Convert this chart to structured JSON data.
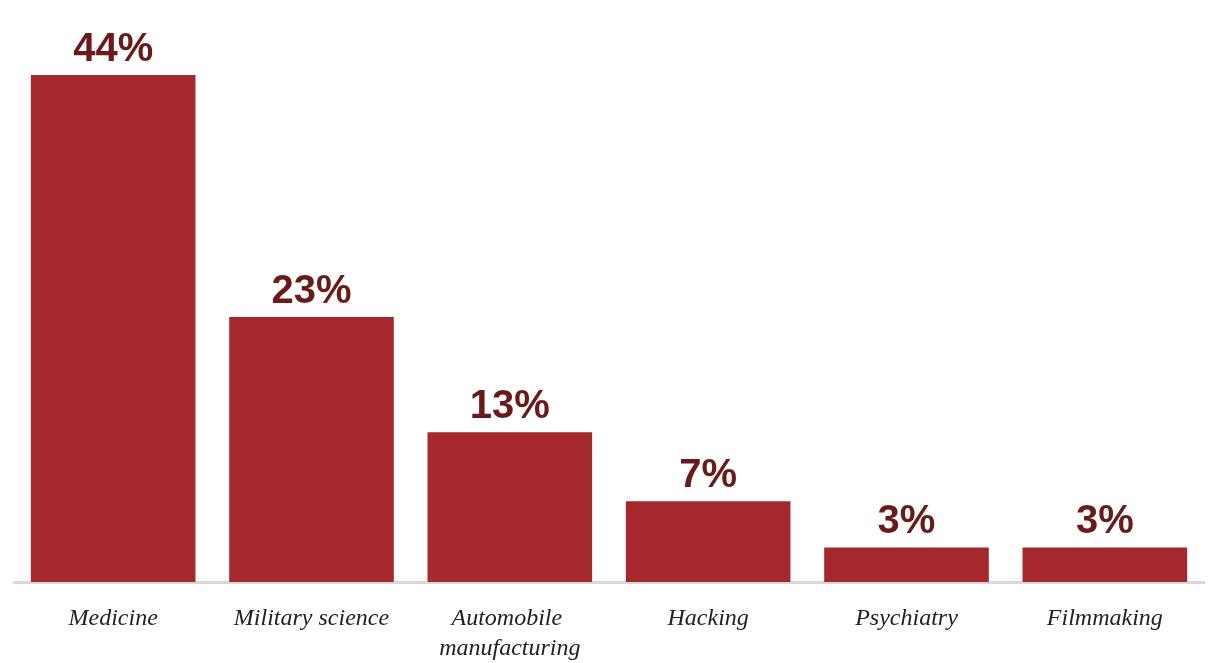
{
  "chart_data": {
    "type": "bar",
    "categories": [
      "Medicine",
      "Military science",
      "Automobile manufacturing",
      "Hacking",
      "Psychiatry",
      "Filmmaking"
    ],
    "values": [
      44,
      23,
      13,
      7,
      3,
      3
    ],
    "value_labels": [
      "44%",
      "23%",
      "13%",
      "7%",
      "3%",
      "3%"
    ],
    "color": "#a4282c"
  }
}
